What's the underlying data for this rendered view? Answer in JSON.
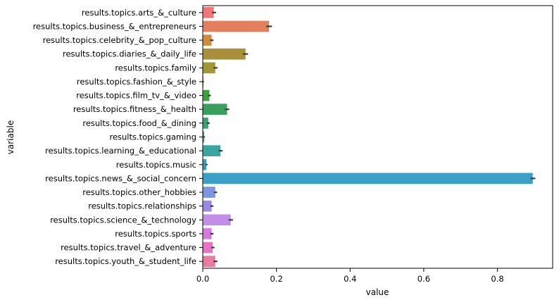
{
  "chart_data": {
    "type": "bar",
    "orientation": "horizontal",
    "xlabel": "value",
    "ylabel": "variable",
    "xlim": [
      0,
      0.95
    ],
    "xticks": [
      0.0,
      0.2,
      0.4,
      0.6,
      0.8
    ],
    "xtick_labels": [
      "0.0",
      "0.2",
      "0.4",
      "0.6",
      "0.8"
    ],
    "grid": false,
    "legend": "none",
    "categories": [
      "results.topics.arts_&_culture",
      "results.topics.business_&_entrepreneurs",
      "results.topics.celebrity_&_pop_culture",
      "results.topics.diaries_&_daily_life",
      "results.topics.family",
      "results.topics.fashion_&_style",
      "results.topics.film_tv_&_video",
      "results.topics.fitness_&_health",
      "results.topics.food_&_dining",
      "results.topics.gaming",
      "results.topics.learning_&_educational",
      "results.topics.music",
      "results.topics.news_&_social_concern",
      "results.topics.other_hobbies",
      "results.topics.relationships",
      "results.topics.science_&_technology",
      "results.topics.sports",
      "results.topics.travel_&_adventure",
      "results.topics.youth_&_student_life"
    ],
    "values": [
      0.03,
      0.18,
      0.024,
      0.116,
      0.034,
      0.002,
      0.018,
      0.066,
      0.015,
      0.004,
      0.048,
      0.01,
      0.896,
      0.034,
      0.024,
      0.076,
      0.024,
      0.027,
      0.034
    ],
    "error_low": [
      0.025,
      0.172,
      0.02,
      0.109,
      0.029,
      0.001,
      0.014,
      0.06,
      0.011,
      0.002,
      0.043,
      0.007,
      0.89,
      0.03,
      0.02,
      0.07,
      0.02,
      0.023,
      0.029
    ],
    "error_high": [
      0.036,
      0.188,
      0.029,
      0.123,
      0.04,
      0.003,
      0.022,
      0.072,
      0.019,
      0.006,
      0.054,
      0.013,
      0.903,
      0.039,
      0.029,
      0.082,
      0.029,
      0.032,
      0.04
    ],
    "colors": [
      "#f0767c",
      "#e27f5c",
      "#d38c3b",
      "#aa8f3a",
      "#a09933",
      "#b1a02a",
      "#3aa33f",
      "#3a9f5c",
      "#3aa36f",
      "#3aa38c",
      "#3aa69f",
      "#3ba0b0",
      "#3aa0c5",
      "#7d96e4",
      "#9a8ae8",
      "#c38ee8",
      "#d57ae0",
      "#e872c5",
      "#e87aa3"
    ],
    "error_color": "#3d3d3d"
  }
}
